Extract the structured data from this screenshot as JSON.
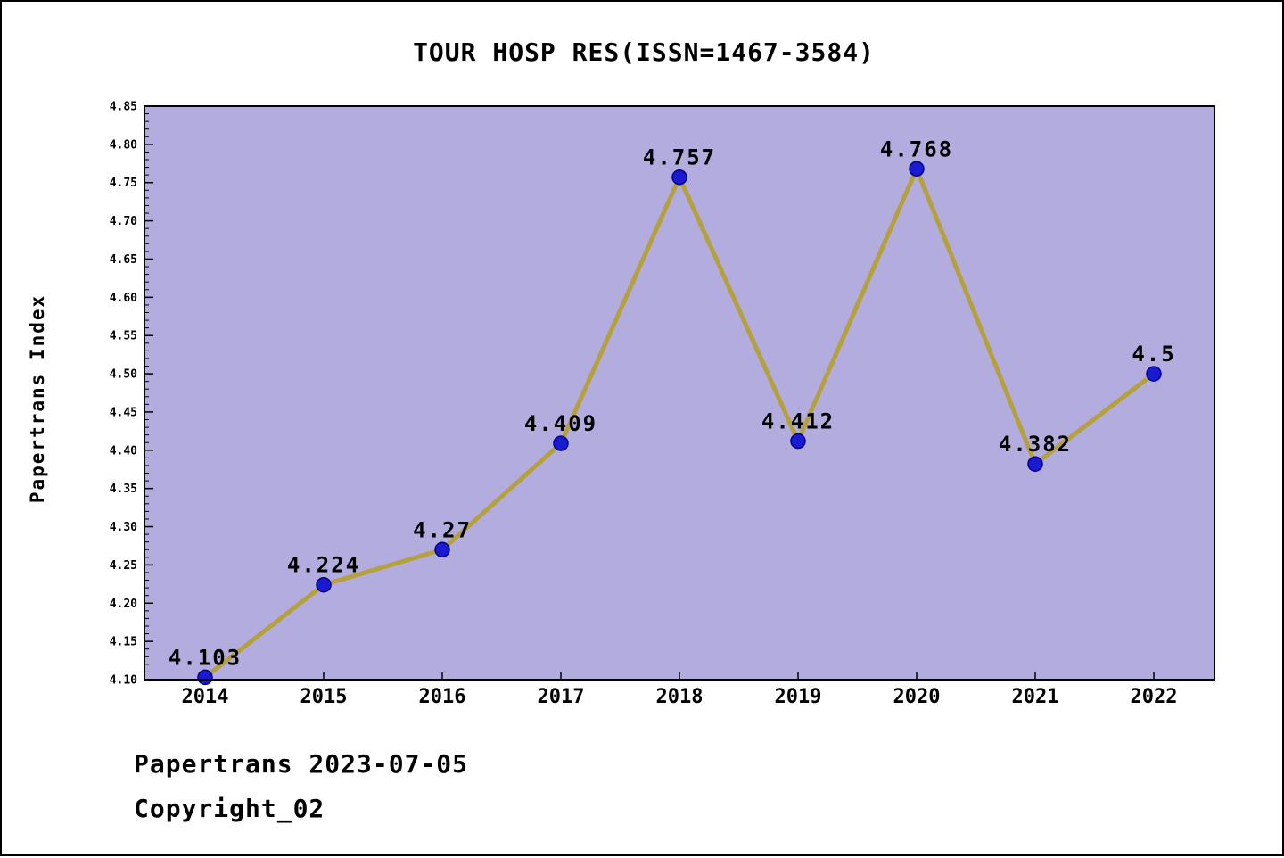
{
  "page": {
    "title": "TOUR HOSP RES(ISSN=1467-3584)",
    "footer_line1": "Papertrans 2023-07-05",
    "footer_line2": "Copyright_02"
  },
  "chart_data": {
    "type": "line",
    "title": "TOUR HOSP RES(ISSN=1467-3584)",
    "xlabel": "",
    "ylabel": "Papertrans Index",
    "categories": [
      "2014",
      "2015",
      "2016",
      "2017",
      "2018",
      "2019",
      "2020",
      "2021",
      "2022"
    ],
    "values": [
      4.103,
      4.224,
      4.27,
      4.409,
      4.757,
      4.412,
      4.768,
      4.382,
      4.5
    ],
    "point_labels": [
      "4.103",
      "4.224",
      "4.27",
      "4.409",
      "4.757",
      "4.412",
      "4.768",
      "4.382",
      "4.5"
    ],
    "ylim": [
      4.1,
      4.85
    ],
    "ytick_major_step": 0.05,
    "ytick_minor_step": 0.01,
    "ytick_labels": [
      "4.10",
      "4.15",
      "4.20",
      "4.25",
      "4.30",
      "4.35",
      "4.40",
      "4.45",
      "4.50",
      "4.55",
      "4.60",
      "4.65",
      "4.70",
      "4.75",
      "4.80",
      "4.85"
    ],
    "grid": false,
    "legend_position": "none",
    "colors": {
      "plot_background": "#b3acdf",
      "line": "#b5a13c",
      "marker_fill": "#1a1ad1",
      "marker_edge": "#00008b",
      "axis": "#000000",
      "text": "#000000"
    }
  }
}
